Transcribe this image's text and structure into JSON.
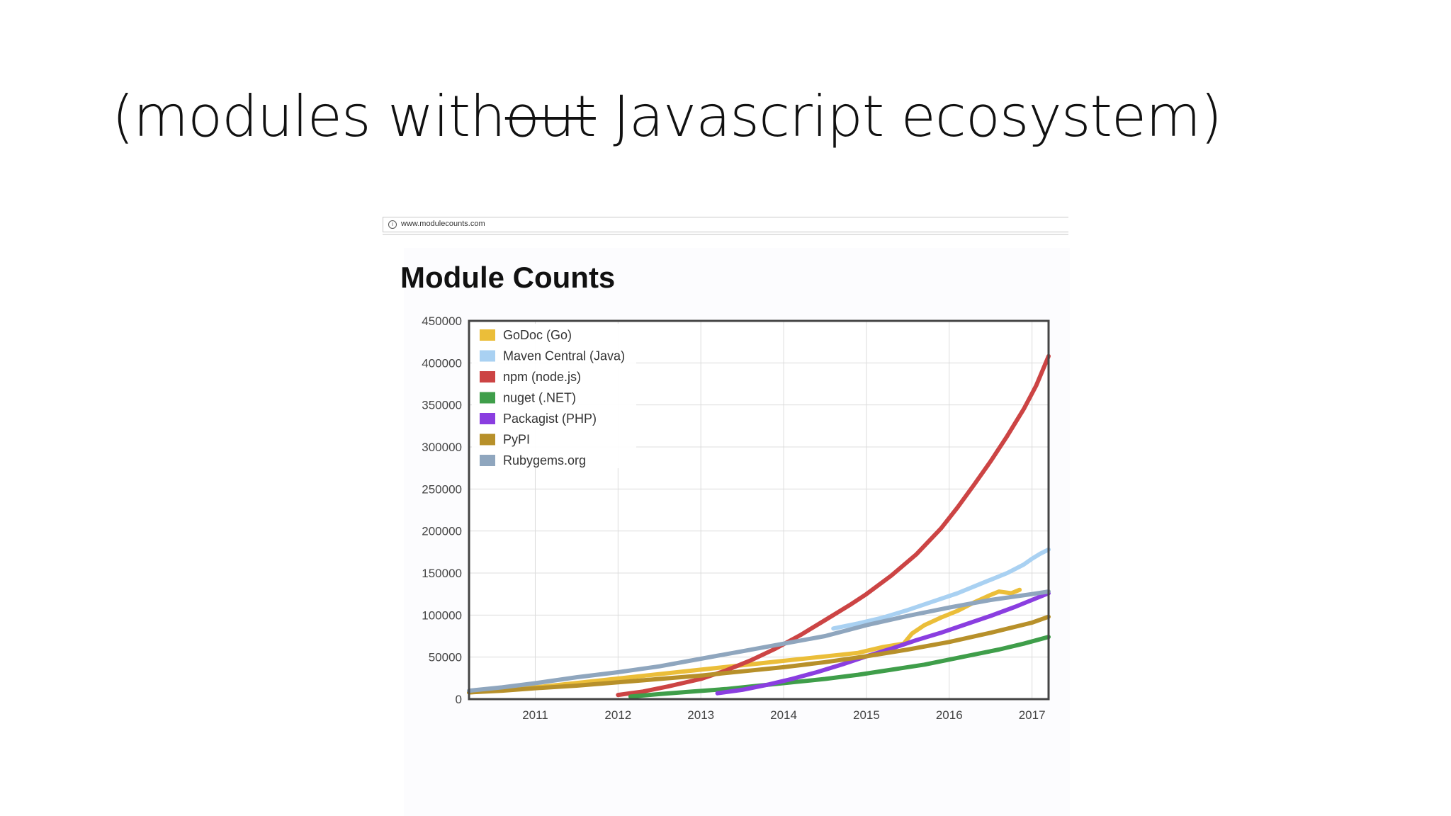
{
  "slide": {
    "title_prefix": "(modules with",
    "title_struck": "out",
    "title_suffix": " Javascript ecosystem)"
  },
  "browser": {
    "url": "www.modulecounts.com",
    "info_icon": "info-icon"
  },
  "chart_data": {
    "type": "line",
    "title": "Module Counts",
    "xlabel": "",
    "ylabel": "",
    "xlim": [
      2010.2,
      2017.2
    ],
    "ylim": [
      0,
      450000
    ],
    "x_ticks": [
      2011,
      2012,
      2013,
      2014,
      2015,
      2016,
      2017
    ],
    "y_ticks": [
      0,
      50000,
      100000,
      150000,
      200000,
      250000,
      300000,
      350000,
      400000,
      450000
    ],
    "grid": true,
    "legend_position": "top-left",
    "series": [
      {
        "name": "GoDoc (Go)",
        "color": "#ebbe39",
        "points": [
          [
            2010.2,
            8000
          ],
          [
            2010.6,
            11000
          ],
          [
            2011.0,
            14000
          ],
          [
            2014.9,
            55000
          ],
          [
            2015.2,
            62000
          ],
          [
            2015.45,
            66000
          ],
          [
            2015.55,
            78000
          ],
          [
            2015.7,
            88000
          ],
          [
            2015.9,
            97000
          ],
          [
            2016.1,
            105000
          ],
          [
            2016.3,
            115000
          ],
          [
            2016.5,
            124000
          ],
          [
            2016.6,
            128000
          ],
          [
            2016.75,
            126000
          ],
          [
            2016.85,
            130000
          ]
        ]
      },
      {
        "name": "Maven Central (Java)",
        "color": "#a9d1f2",
        "points": [
          [
            2014.6,
            84000
          ],
          [
            2014.9,
            90000
          ],
          [
            2015.2,
            97000
          ],
          [
            2015.5,
            106000
          ],
          [
            2015.8,
            116000
          ],
          [
            2016.1,
            126000
          ],
          [
            2016.4,
            138000
          ],
          [
            2016.7,
            150000
          ],
          [
            2016.9,
            160000
          ],
          [
            2017.0,
            167000
          ],
          [
            2017.1,
            173000
          ],
          [
            2017.2,
            178000
          ]
        ]
      },
      {
        "name": "npm (node.js)",
        "color": "#cc4444",
        "points": [
          [
            2012.0,
            5000
          ],
          [
            2012.3,
            9000
          ],
          [
            2012.6,
            15000
          ],
          [
            2013.0,
            24000
          ],
          [
            2013.3,
            34000
          ],
          [
            2013.6,
            46000
          ],
          [
            2013.9,
            60000
          ],
          [
            2014.2,
            76000
          ],
          [
            2014.5,
            94000
          ],
          [
            2014.8,
            112000
          ],
          [
            2015.0,
            125000
          ],
          [
            2015.3,
            147000
          ],
          [
            2015.6,
            172000
          ],
          [
            2015.9,
            203000
          ],
          [
            2016.1,
            228000
          ],
          [
            2016.3,
            255000
          ],
          [
            2016.5,
            283000
          ],
          [
            2016.7,
            313000
          ],
          [
            2016.9,
            345000
          ],
          [
            2017.05,
            373000
          ],
          [
            2017.2,
            408000
          ]
        ]
      },
      {
        "name": "nuget (.NET)",
        "color": "#3f9e4a",
        "points": [
          [
            2012.15,
            3000
          ],
          [
            2012.5,
            6000
          ],
          [
            2012.9,
            9000
          ],
          [
            2013.3,
            12000
          ],
          [
            2013.7,
            16000
          ],
          [
            2014.1,
            20000
          ],
          [
            2014.5,
            24000
          ],
          [
            2014.9,
            29000
          ],
          [
            2015.3,
            35000
          ],
          [
            2015.7,
            41000
          ],
          [
            2016.0,
            47000
          ],
          [
            2016.3,
            53000
          ],
          [
            2016.6,
            59000
          ],
          [
            2016.9,
            66000
          ],
          [
            2017.2,
            74000
          ]
        ]
      },
      {
        "name": "Packagist (PHP)",
        "color": "#8a3ee0",
        "points": [
          [
            2013.2,
            7000
          ],
          [
            2013.5,
            11000
          ],
          [
            2013.8,
            17000
          ],
          [
            2014.1,
            24000
          ],
          [
            2014.4,
            32000
          ],
          [
            2014.7,
            41000
          ],
          [
            2015.0,
            51000
          ],
          [
            2015.3,
            60000
          ],
          [
            2015.6,
            70000
          ],
          [
            2015.9,
            79000
          ],
          [
            2016.2,
            89000
          ],
          [
            2016.5,
            99000
          ],
          [
            2016.8,
            110000
          ],
          [
            2017.0,
            118000
          ],
          [
            2017.2,
            126000
          ]
        ]
      },
      {
        "name": "PyPI",
        "color": "#b7902a",
        "points": [
          [
            2010.2,
            8000
          ],
          [
            2010.6,
            10000
          ],
          [
            2011.0,
            13000
          ],
          [
            2011.5,
            16000
          ],
          [
            2012.0,
            20000
          ],
          [
            2012.5,
            24000
          ],
          [
            2013.0,
            28000
          ],
          [
            2013.5,
            33000
          ],
          [
            2014.0,
            38000
          ],
          [
            2014.5,
            44000
          ],
          [
            2015.0,
            51000
          ],
          [
            2015.5,
            59000
          ],
          [
            2016.0,
            68000
          ],
          [
            2016.5,
            79000
          ],
          [
            2017.0,
            91000
          ],
          [
            2017.2,
            98000
          ]
        ]
      },
      {
        "name": "Rubygems.org",
        "color": "#8fa6be",
        "points": [
          [
            2010.2,
            10000
          ],
          [
            2010.6,
            14000
          ],
          [
            2011.0,
            19000
          ],
          [
            2011.5,
            26000
          ],
          [
            2012.0,
            32000
          ],
          [
            2012.5,
            39000
          ],
          [
            2013.0,
            48000
          ],
          [
            2013.5,
            57000
          ],
          [
            2014.0,
            66000
          ],
          [
            2014.5,
            75000
          ],
          [
            2015.0,
            88000
          ],
          [
            2015.5,
            99000
          ],
          [
            2016.0,
            109000
          ],
          [
            2016.5,
            118000
          ],
          [
            2017.0,
            125000
          ],
          [
            2017.2,
            128000
          ]
        ]
      }
    ]
  }
}
